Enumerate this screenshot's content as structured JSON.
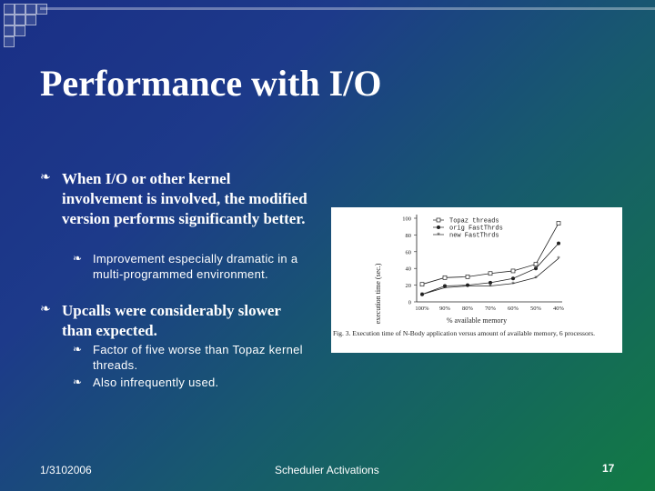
{
  "slide": {
    "title": "Performance with I/O",
    "bullets": [
      {
        "text": "When I/O or other kernel involvement is involved, the modified version performs significantly better.",
        "icon": "bullet-icon"
      },
      {
        "text": "Improvement especially dramatic in a multi-programmed environment.",
        "icon": "bullet-icon"
      },
      {
        "text": "Upcalls were considerably slower than expected.",
        "icon": "bullet-icon"
      },
      {
        "text": "Factor of five worse than Topaz kernel threads.",
        "icon": "bullet-icon"
      },
      {
        "text": "Also infrequently used.",
        "icon": "bullet-icon"
      }
    ],
    "footer": {
      "date": "1/3102006",
      "center": "Scheduler Activations",
      "page": "17"
    }
  },
  "chart_data": {
    "type": "line",
    "ylabel": "execution time (sec.)",
    "xlabel": "% available memory",
    "categories": [
      "100%",
      "90%",
      "80%",
      "70%",
      "60%",
      "50%",
      "40%"
    ],
    "ylim": [
      0,
      100
    ],
    "yticks": [
      0,
      20,
      40,
      60,
      80,
      100
    ],
    "series": [
      {
        "name": "Topaz threads",
        "marker": "square",
        "values": [
          21,
          29,
          30,
          34,
          37,
          45,
          94
        ]
      },
      {
        "name": "orig FastThrds",
        "marker": "circle",
        "values": [
          9,
          19,
          20,
          23,
          28,
          40,
          70
        ]
      },
      {
        "name": "new FastThrds",
        "marker": "star",
        "values": [
          9,
          17,
          19,
          19,
          22,
          29,
          52
        ]
      }
    ],
    "legend": "top-left",
    "caption": "Fig. 3. Execution time of N-Body application versus amount of available memory, 6 processors."
  },
  "colors": {
    "text": "#ffffff",
    "chart_ink": "#222222"
  }
}
